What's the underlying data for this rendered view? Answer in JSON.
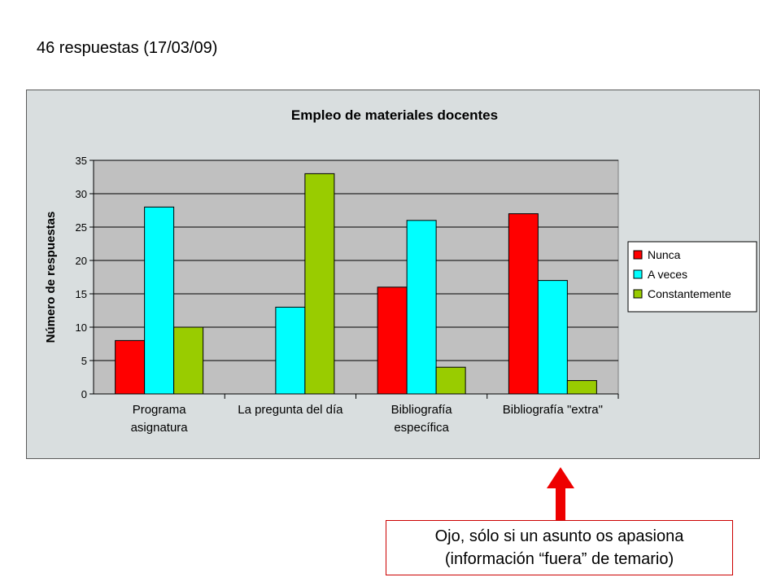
{
  "heading": "46 respuestas (17/03/09)",
  "note": {
    "line1": "Ojo, sólo si un asunto os apasiona",
    "line2": "(información “fuera” de temario)"
  },
  "colors": {
    "plot_bg": "#c0c0c0",
    "chart_bg": "#d9dedf",
    "note_border": "#cc0000",
    "arrow": "#ee0000"
  },
  "chart_data": {
    "type": "bar",
    "title": "Empleo de materiales docentes",
    "xlabel": "",
    "ylabel": "Número de respuestas",
    "ylim": [
      0,
      35
    ],
    "yticks": [
      0,
      5,
      10,
      15,
      20,
      25,
      30,
      35
    ],
    "grid": true,
    "legend_position": "right",
    "categories": [
      [
        "Programa",
        "asignatura"
      ],
      [
        "La pregunta del día"
      ],
      [
        "Bibliografía",
        "específica"
      ],
      [
        "Bibliografía \"extra\""
      ]
    ],
    "series": [
      {
        "name": "Nunca",
        "color": "#ff0000",
        "values": [
          8,
          0,
          16,
          27
        ]
      },
      {
        "name": "A veces",
        "color": "#00ffff",
        "values": [
          28,
          13,
          26,
          17
        ]
      },
      {
        "name": "Constantemente",
        "color": "#99cc00",
        "values": [
          10,
          33,
          4,
          2
        ]
      }
    ]
  }
}
